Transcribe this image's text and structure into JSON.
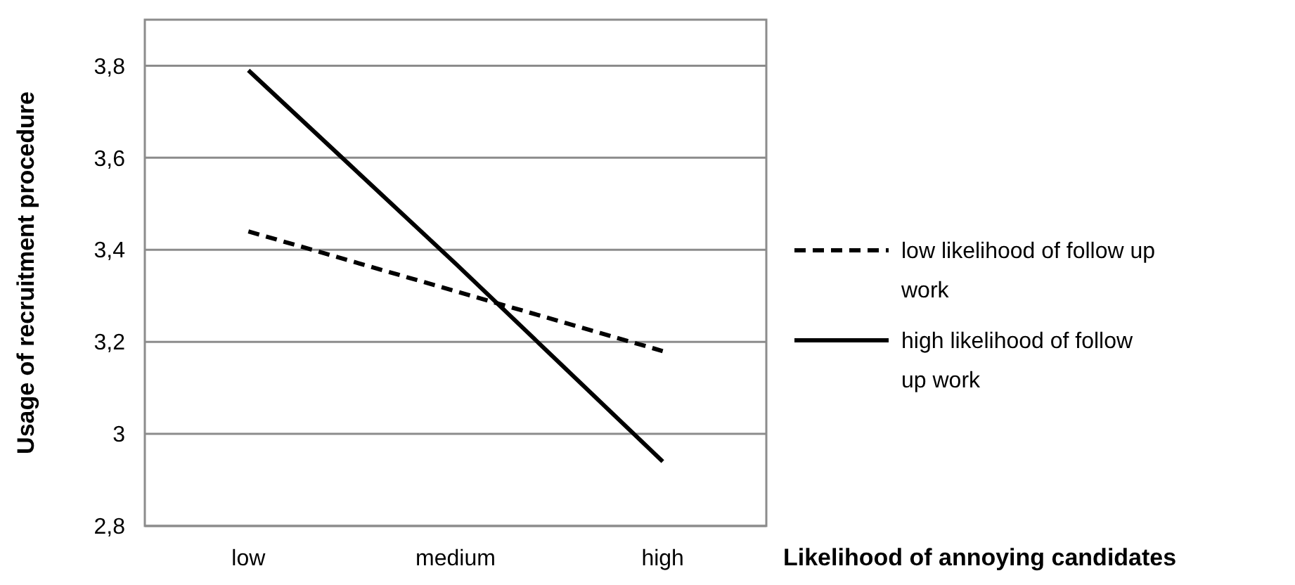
{
  "chart_data": {
    "type": "line",
    "xlabel": "Likelihood of annoying candidates",
    "ylabel": "Usage of recruitment procedure",
    "categories": [
      "low",
      "medium",
      "high"
    ],
    "series": [
      {
        "name": "low likelihood of follow up work",
        "color": "#000000",
        "line_style": "dashed",
        "values": [
          3.44,
          3.31,
          3.18
        ]
      },
      {
        "name": "high likelihood of follow up work",
        "color": "#000000",
        "line_style": "solid",
        "values": [
          3.79,
          3.37,
          2.94
        ]
      }
    ],
    "ylim": [
      2.8,
      3.9
    ],
    "yticks": [
      {
        "value": 2.8,
        "label": "2,8"
      },
      {
        "value": 3,
        "label": "3"
      },
      {
        "value": 3.2,
        "label": "3,2"
      },
      {
        "value": 3.4,
        "label": "3,4"
      },
      {
        "value": 3.6,
        "label": "3,6"
      },
      {
        "value": 3.8,
        "label": "3,8"
      }
    ],
    "grid": "y",
    "legend": "right",
    "marker": "none"
  }
}
